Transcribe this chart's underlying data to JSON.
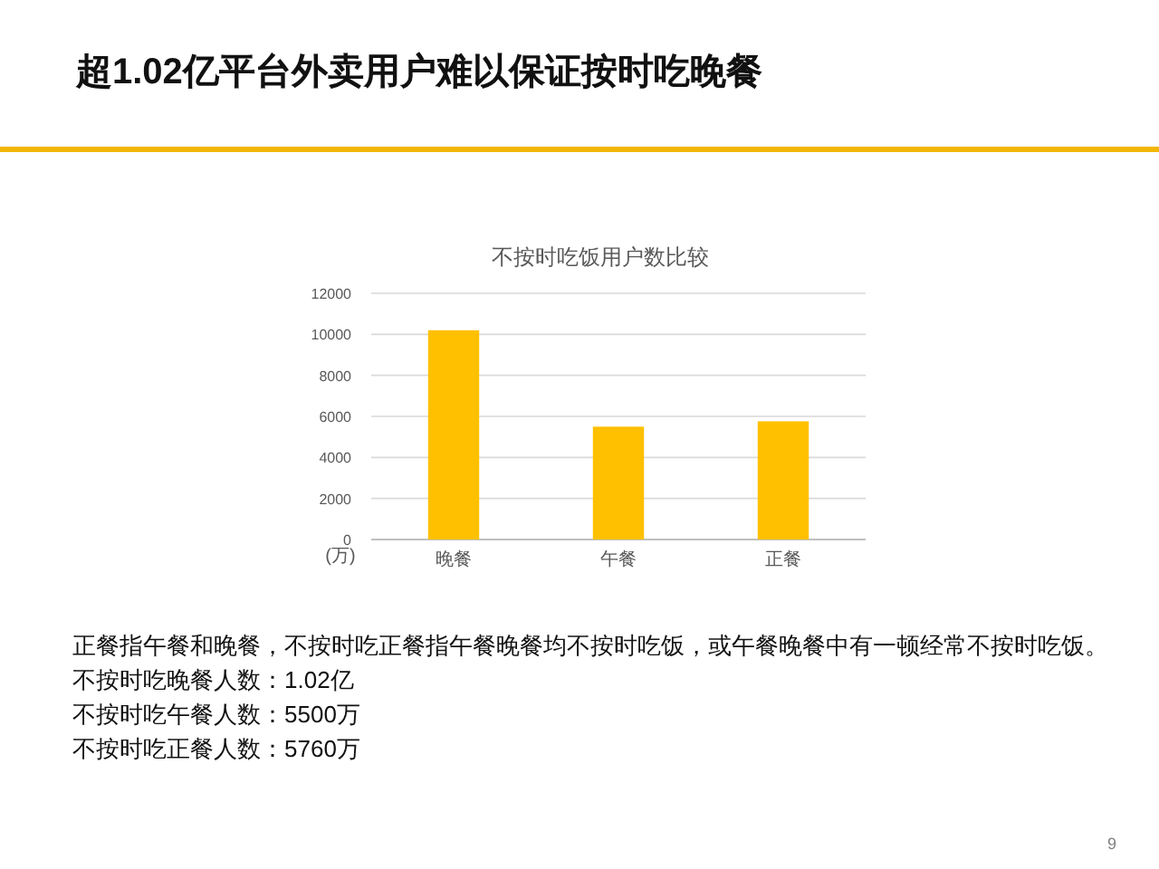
{
  "chart_data": {
    "type": "bar",
    "title": "超1.02亿平台外卖用户难以保证按时吃晚餐",
    "subtitle": "不按时吃饭用户数比较",
    "ylabel": "(万)",
    "categories": [
      "晚餐",
      "午餐",
      "正餐"
    ],
    "values": [
      10200,
      5500,
      5760
    ],
    "color": "#ffc000",
    "ylim": [
      0,
      12000
    ],
    "yticks": [
      0,
      2000,
      4000,
      6000,
      8000,
      10000,
      12000
    ],
    "grid": "y",
    "annotations": [
      "正餐指午餐和晚餐，不按时吃正餐指午餐晚餐均不按时吃饭，或午餐晚餐中有一顿经常不按时吃饭。",
      "不按时吃晚餐人数：1.02亿",
      "不按时吃午餐人数：5500万",
      "不按时吃正餐人数：5760万",
      "9"
    ]
  }
}
